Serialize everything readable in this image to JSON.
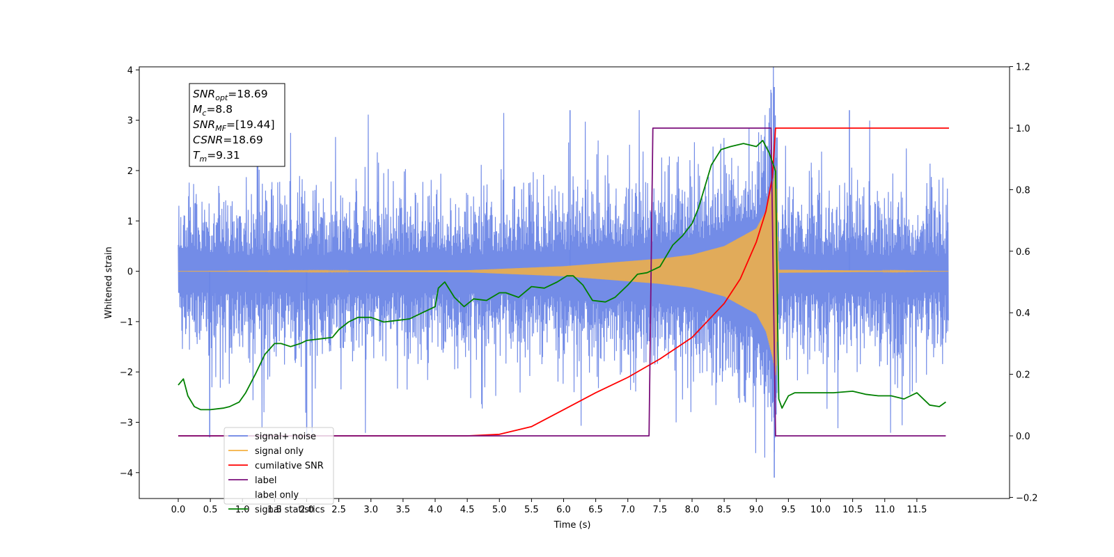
{
  "chart_data": {
    "type": "line",
    "xlabel": "Time (s)",
    "ylabel": "Whitened strain",
    "xlim": [
      -0.58,
      12.58
    ],
    "ylim": [
      -4.5,
      4.05
    ],
    "y2lim": [
      -0.2,
      1.2
    ],
    "x_ticks": [
      "0.0",
      "0.5",
      "1.0",
      "1.5",
      "2.0",
      "2.5",
      "3.0",
      "3.5",
      "4.0",
      "4.5",
      "5.0",
      "5.5",
      "6.0",
      "6.5",
      "7.0",
      "7.5",
      "8.0",
      "8.5",
      "9.0",
      "9.5",
      "10.0",
      "10.5",
      "11.0",
      "11.5"
    ],
    "y_ticks": [
      "4",
      "3",
      "2",
      "1",
      "0",
      "−1",
      "−2",
      "−3",
      "−4"
    ],
    "y2_ticks": [
      "1.2",
      "1.0",
      "0.8",
      "0.6",
      "0.4",
      "0.2",
      "0.0",
      "−0.2"
    ],
    "annotation": [
      {
        "base": "SNR",
        "sub": "opt",
        "value": "=18.69"
      },
      {
        "base": "M",
        "sub": "c",
        "value": "=8.8"
      },
      {
        "base": "SNR",
        "sub": "MF",
        "value": "=[19.44]"
      },
      {
        "base": "CSNR",
        "sub": "",
        "value": "=18.69"
      },
      {
        "base": "T",
        "sub": "m",
        "value": "=9.31"
      }
    ],
    "legend_position": "lower-left",
    "series": [
      {
        "name": "signal+ noise",
        "color": "#6b86e6",
        "axis": "left",
        "style": "noise band, approx. amplitude ±2.5 with spikes to 3.66 near t=9.28",
        "peak_values": [
          [
            0.49,
            -3.3
          ],
          [
            2.0,
            -3.3
          ],
          [
            6.1,
            3.2
          ],
          [
            9.28,
            3.66
          ],
          [
            9.28,
            -4.1
          ],
          [
            10.45,
            3.2
          ]
        ]
      },
      {
        "name": "signal only",
        "color": "#f5b041",
        "axis": "left",
        "style": "chirp, amplitude grows toward merger",
        "envelope": {
          "x": [
            0,
            4.5,
            6.0,
            7.0,
            7.5,
            8.0,
            8.5,
            9.0,
            9.15,
            9.25,
            9.31,
            9.35,
            12.0
          ],
          "amp": [
            0,
            0.02,
            0.1,
            0.2,
            0.25,
            0.33,
            0.5,
            0.85,
            1.2,
            1.7,
            2.1,
            0.03,
            0.0
          ]
        }
      },
      {
        "name": "cumilative SNR",
        "color": "#ff0000",
        "axis": "right",
        "x": [
          0,
          4.5,
          5.0,
          5.5,
          6.0,
          6.5,
          7.0,
          7.5,
          8.0,
          8.5,
          8.75,
          9.0,
          9.15,
          9.25,
          9.3,
          9.32,
          12.0
        ],
        "y": [
          0,
          0.0,
          0.005,
          0.03,
          0.085,
          0.14,
          0.19,
          0.25,
          0.32,
          0.43,
          0.51,
          0.63,
          0.73,
          0.84,
          1.0,
          1.0,
          1.0
        ]
      },
      {
        "name": "label",
        "color": "#7b0f7b",
        "axis": "right",
        "x": [
          0,
          7.33,
          7.39,
          9.23,
          9.3,
          11.95
        ],
        "y": [
          0,
          0,
          1,
          1,
          0,
          0
        ]
      },
      {
        "name": "label only",
        "color": "#ffffff",
        "axis": "right",
        "hidden_series": true
      },
      {
        "name": "signal statistics",
        "color": "#008000",
        "axis": "right",
        "x": [
          0,
          0.08,
          0.15,
          0.25,
          0.35,
          0.5,
          0.7,
          0.8,
          0.95,
          1.05,
          1.2,
          1.35,
          1.5,
          1.6,
          1.75,
          1.9,
          2.0,
          2.2,
          2.4,
          2.5,
          2.65,
          2.8,
          3.0,
          3.2,
          3.4,
          3.6,
          3.8,
          4.0,
          4.05,
          4.15,
          4.3,
          4.45,
          4.6,
          4.8,
          5.0,
          5.1,
          5.3,
          5.5,
          5.7,
          5.9,
          6.05,
          6.15,
          6.3,
          6.45,
          6.65,
          6.8,
          7.0,
          7.15,
          7.3,
          7.5,
          7.7,
          7.85,
          8.0,
          8.1,
          8.3,
          8.45,
          8.6,
          8.8,
          9.0,
          9.1,
          9.2,
          9.3,
          9.35,
          9.4,
          9.5,
          9.6,
          9.8,
          10.0,
          10.2,
          10.5,
          10.7,
          10.9,
          11.1,
          11.3,
          11.5,
          11.7,
          11.85,
          11.95
        ],
        "y": [
          0.165,
          0.185,
          0.13,
          0.095,
          0.085,
          0.085,
          0.09,
          0.095,
          0.11,
          0.14,
          0.2,
          0.265,
          0.3,
          0.3,
          0.29,
          0.3,
          0.31,
          0.315,
          0.32,
          0.345,
          0.37,
          0.385,
          0.385,
          0.37,
          0.375,
          0.38,
          0.4,
          0.42,
          0.48,
          0.5,
          0.45,
          0.42,
          0.445,
          0.44,
          0.465,
          0.465,
          0.45,
          0.485,
          0.48,
          0.5,
          0.52,
          0.52,
          0.49,
          0.44,
          0.435,
          0.45,
          0.49,
          0.525,
          0.53,
          0.55,
          0.62,
          0.65,
          0.69,
          0.74,
          0.88,
          0.93,
          0.94,
          0.95,
          0.94,
          0.96,
          0.92,
          0.86,
          0.12,
          0.09,
          0.13,
          0.14,
          0.14,
          0.14,
          0.14,
          0.145,
          0.135,
          0.13,
          0.13,
          0.12,
          0.14,
          0.1,
          0.095,
          0.11
        ]
      }
    ]
  }
}
